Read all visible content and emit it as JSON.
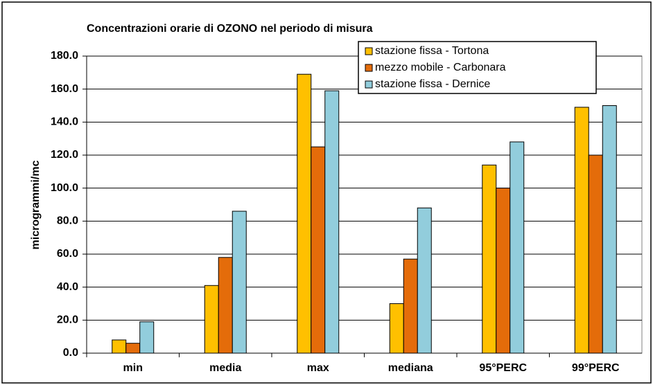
{
  "chart_data": {
    "type": "bar",
    "title": "Concentrazioni orarie di OZONO nel periodo  di misura",
    "ylabel": "microgrammi/mc",
    "categories": [
      "min",
      "media",
      "max",
      "mediana",
      "95°PERC",
      "99°PERC"
    ],
    "series": [
      {
        "name": "stazione fissa - Tortona",
        "color": "#FFC000",
        "values": [
          8,
          41,
          169,
          30,
          114,
          149
        ]
      },
      {
        "name": "mezzo mobile - Carbonara",
        "color": "#E46C0A",
        "values": [
          6,
          58,
          125,
          57,
          100,
          120
        ]
      },
      {
        "name": "stazione fissa - Dernice",
        "color": "#92CDDC",
        "values": [
          19,
          86,
          159,
          88,
          128,
          150
        ]
      }
    ],
    "ylim": [
      0,
      180
    ],
    "yticks": [
      {
        "value": 0,
        "label": "0.0"
      },
      {
        "value": 20,
        "label": "20.0"
      },
      {
        "value": 40,
        "label": "40.0"
      },
      {
        "value": 60,
        "label": "60.0"
      },
      {
        "value": 80,
        "label": "80.0"
      },
      {
        "value": 100,
        "label": "100.0"
      },
      {
        "value": 120,
        "label": "120.0"
      },
      {
        "value": 140,
        "label": "140.0"
      },
      {
        "value": 160,
        "label": "160.0"
      },
      {
        "value": 180,
        "label": "180.0"
      }
    ],
    "grid": true,
    "legend": "top-right"
  }
}
